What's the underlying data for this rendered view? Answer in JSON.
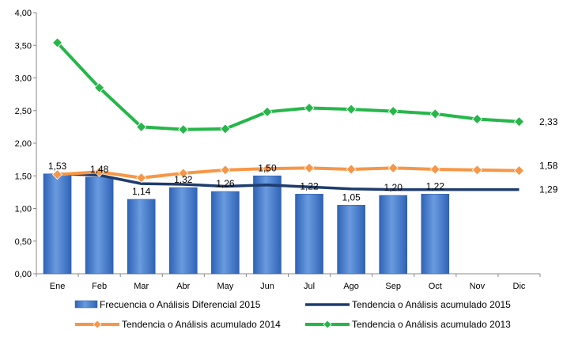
{
  "chart_data": {
    "type": "bar",
    "categories": [
      "Ene",
      "Feb",
      "Mar",
      "Abr",
      "May",
      "Jun",
      "Jul",
      "Ago",
      "Sep",
      "Oct",
      "Nov",
      "Dic"
    ],
    "ylim": [
      0,
      4
    ],
    "yticks": [
      "0,00",
      "0,50",
      "1,00",
      "1,50",
      "2,00",
      "2,50",
      "3,00",
      "3,50",
      "4,00"
    ],
    "legend_position": "bottom",
    "grid": false,
    "series": [
      {
        "name": "Frecuencia o Análisis Diferencial 2015",
        "kind": "bar",
        "color": "#4a7fd0",
        "values": [
          1.53,
          1.48,
          1.14,
          1.32,
          1.26,
          1.5,
          1.22,
          1.05,
          1.2,
          1.22,
          null,
          null
        ],
        "labels": [
          "1,53",
          "1,48",
          "1,14",
          "1,32",
          "1,26",
          "1,50",
          "1,22",
          "1,05",
          "1,20",
          "1,22",
          "",
          ""
        ]
      },
      {
        "name": "Tendencia o Análisis acumulado 2015",
        "kind": "line",
        "color": "#1f3c6e",
        "values": [
          1.53,
          1.51,
          1.38,
          1.37,
          1.34,
          1.36,
          1.33,
          1.3,
          1.29,
          1.29,
          1.29,
          1.29
        ],
        "end_label": "1,29"
      },
      {
        "name": "Tendencia o Análisis acumulado 2014",
        "kind": "line-marker",
        "color": "#f79646",
        "values": [
          1.52,
          1.56,
          1.47,
          1.54,
          1.59,
          1.61,
          1.62,
          1.6,
          1.62,
          1.6,
          1.59,
          1.58
        ],
        "end_label": "1,58"
      },
      {
        "name": "Tendencia o Análisis acumulado 2013",
        "kind": "line-marker",
        "color": "#26b64a",
        "values": [
          3.54,
          2.85,
          2.25,
          2.21,
          2.22,
          2.48,
          2.54,
          2.52,
          2.49,
          2.45,
          2.37,
          2.33
        ],
        "end_label": "2,33"
      }
    ]
  }
}
